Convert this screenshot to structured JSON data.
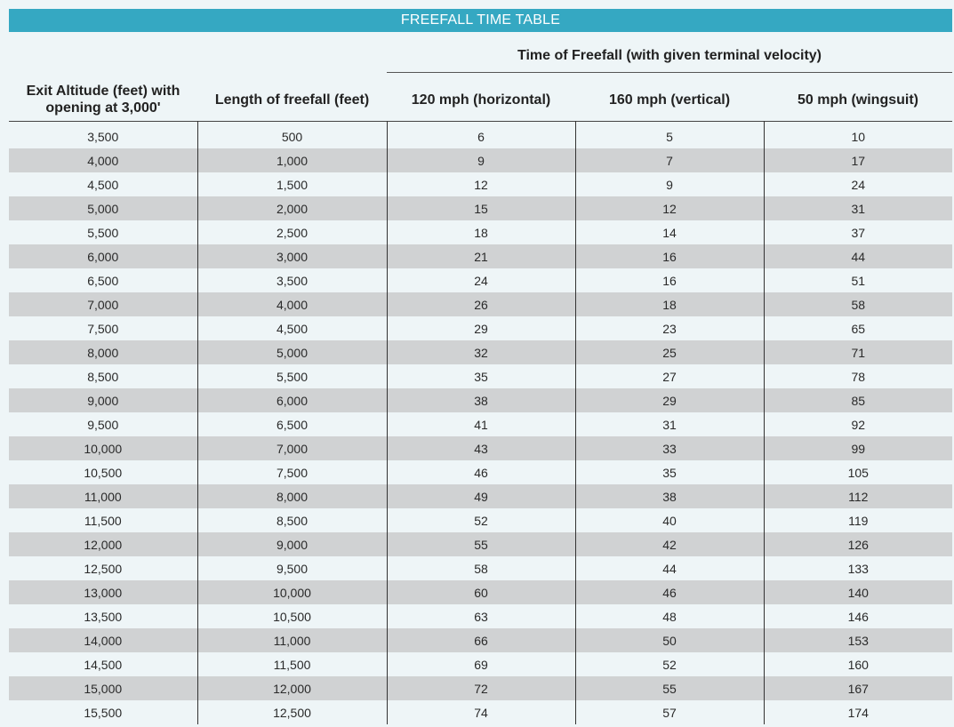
{
  "title": "FREEFALL TIME TABLE",
  "group_header": "Time of Freefall (with given terminal velocity)",
  "columns": [
    "Exit Altitude (feet) with opening at 3,000'",
    "Length of freefall (feet)",
    "120 mph (horizontal)",
    "160 mph (vertical)",
    "50 mph (wingsuit)"
  ],
  "rows": [
    [
      "3,500",
      "500",
      "6",
      "5",
      "10"
    ],
    [
      "4,000",
      "1,000",
      "9",
      "7",
      "17"
    ],
    [
      "4,500",
      "1,500",
      "12",
      "9",
      "24"
    ],
    [
      "5,000",
      "2,000",
      "15",
      "12",
      "31"
    ],
    [
      "5,500",
      "2,500",
      "18",
      "14",
      "37"
    ],
    [
      "6,000",
      "3,000",
      "21",
      "16",
      "44"
    ],
    [
      "6,500",
      "3,500",
      "24",
      "16",
      "51"
    ],
    [
      "7,000",
      "4,000",
      "26",
      "18",
      "58"
    ],
    [
      "7,500",
      "4,500",
      "29",
      "23",
      "65"
    ],
    [
      "8,000",
      "5,000",
      "32",
      "25",
      "71"
    ],
    [
      "8,500",
      "5,500",
      "35",
      "27",
      "78"
    ],
    [
      "9,000",
      "6,000",
      "38",
      "29",
      "85"
    ],
    [
      "9,500",
      "6,500",
      "41",
      "31",
      "92"
    ],
    [
      "10,000",
      "7,000",
      "43",
      "33",
      "99"
    ],
    [
      "10,500",
      "7,500",
      "46",
      "35",
      "105"
    ],
    [
      "11,000",
      "8,000",
      "49",
      "38",
      "112"
    ],
    [
      "11,500",
      "8,500",
      "52",
      "40",
      "119"
    ],
    [
      "12,000",
      "9,000",
      "55",
      "42",
      "126"
    ],
    [
      "12,500",
      "9,500",
      "58",
      "44",
      "133"
    ],
    [
      "13,000",
      "10,000",
      "60",
      "46",
      "140"
    ],
    [
      "13,500",
      "10,500",
      "63",
      "48",
      "146"
    ],
    [
      "14,000",
      "11,000",
      "66",
      "50",
      "153"
    ],
    [
      "14,500",
      "11,500",
      "69",
      "52",
      "160"
    ],
    [
      "15,000",
      "12,000",
      "72",
      "55",
      "167"
    ],
    [
      "15,500",
      "12,500",
      "74",
      "57",
      "174"
    ]
  ],
  "colors": {
    "title_bar": "#35a8c2",
    "background": "#eef5f7",
    "stripe": "#d0d2d3"
  }
}
